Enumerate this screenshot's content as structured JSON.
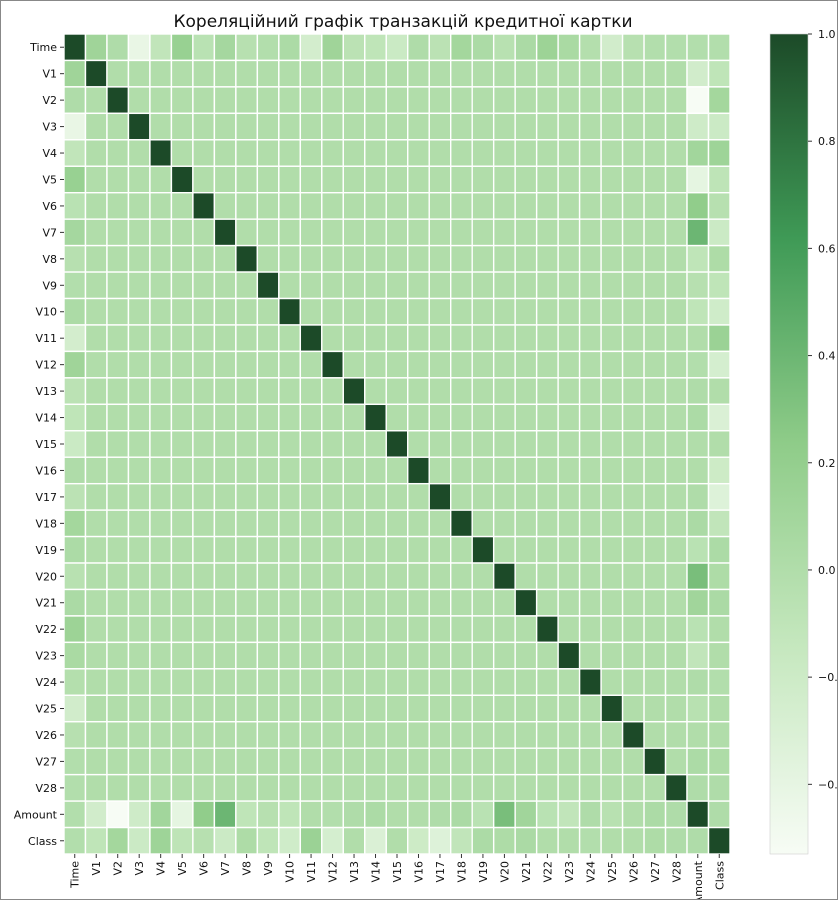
{
  "chart_data": {
    "type": "heatmap",
    "title": "Кореляційний графік транзакцій кредитної картки",
    "labels": [
      "Time",
      "V1",
      "V2",
      "V3",
      "V4",
      "V5",
      "V6",
      "V7",
      "V8",
      "V9",
      "V10",
      "V11",
      "V12",
      "V13",
      "V14",
      "V15",
      "V16",
      "V17",
      "V18",
      "V19",
      "V20",
      "V21",
      "V22",
      "V23",
      "V24",
      "V25",
      "V26",
      "V27",
      "V28",
      "Amount",
      "Class"
    ],
    "matrix": [
      [
        1.0,
        0.12,
        0.01,
        -0.42,
        -0.11,
        0.17,
        -0.06,
        0.08,
        -0.04,
        -0.01,
        0.03,
        -0.25,
        0.12,
        -0.07,
        -0.1,
        -0.18,
        0.01,
        -0.07,
        0.09,
        0.03,
        -0.05,
        0.04,
        0.14,
        0.05,
        -0.02,
        -0.23,
        -0.04,
        -0.01,
        -0.01,
        -0.01,
        -0.01
      ],
      [
        0.12,
        1.0,
        0,
        0,
        0,
        0,
        0,
        0,
        0,
        0,
        0,
        0,
        0,
        0,
        0,
        0,
        0,
        0,
        0,
        0,
        0,
        0,
        0,
        0,
        0,
        0,
        0,
        0,
        0,
        -0.23,
        -0.1
      ],
      [
        0.01,
        0,
        1.0,
        0,
        0,
        0,
        0,
        0,
        0,
        0,
        0,
        0,
        0,
        0,
        0,
        0,
        0,
        0,
        0,
        0,
        0,
        0,
        0,
        0,
        0,
        0,
        0,
        0,
        0,
        -0.53,
        0.09
      ],
      [
        -0.42,
        0,
        0,
        1.0,
        0,
        0,
        0,
        0,
        0,
        0,
        0,
        0,
        0,
        0,
        0,
        0,
        0,
        0,
        0,
        0,
        0,
        0,
        0,
        0,
        0,
        0,
        0,
        0,
        0,
        -0.21,
        -0.19
      ],
      [
        -0.11,
        0,
        0,
        0,
        1.0,
        0,
        0,
        0,
        0,
        0,
        0,
        0,
        0,
        0,
        0,
        0,
        0,
        0,
        0,
        0,
        0,
        0,
        0,
        0,
        0,
        0,
        0,
        0,
        0,
        0.1,
        0.13
      ],
      [
        0.17,
        0,
        0,
        0,
        0,
        1.0,
        0,
        0,
        0,
        0,
        0,
        0,
        0,
        0,
        0,
        0,
        0,
        0,
        0,
        0,
        0,
        0,
        0,
        0,
        0,
        0,
        0,
        0,
        0,
        -0.39,
        -0.09
      ],
      [
        -0.06,
        0,
        0,
        0,
        0,
        0,
        1.0,
        0,
        0,
        0,
        0,
        0,
        0,
        0,
        0,
        0,
        0,
        0,
        0,
        0,
        0,
        0,
        0,
        0,
        0,
        0,
        0,
        0,
        0,
        0.22,
        -0.04
      ],
      [
        0.08,
        0,
        0,
        0,
        0,
        0,
        0,
        1.0,
        0,
        0,
        0,
        0,
        0,
        0,
        0,
        0,
        0,
        0,
        0,
        0,
        0,
        0,
        0,
        0,
        0,
        0,
        0,
        0,
        0,
        0.4,
        -0.19
      ],
      [
        -0.04,
        0,
        0,
        0,
        0,
        0,
        0,
        0,
        1.0,
        0,
        0,
        0,
        0,
        0,
        0,
        0,
        0,
        0,
        0,
        0,
        0,
        0,
        0,
        0,
        0,
        0,
        0,
        0,
        0,
        -0.1,
        0.02
      ],
      [
        -0.01,
        0,
        0,
        0,
        0,
        0,
        0,
        0,
        0,
        1.0,
        0,
        0,
        0,
        0,
        0,
        0,
        0,
        0,
        0,
        0,
        0,
        0,
        0,
        0,
        0,
        0,
        0,
        0,
        0,
        -0.04,
        -0.1
      ],
      [
        0.03,
        0,
        0,
        0,
        0,
        0,
        0,
        0,
        0,
        0,
        1.0,
        0,
        0,
        0,
        0,
        0,
        0,
        0,
        0,
        0,
        0,
        0,
        0,
        0,
        0,
        0,
        0,
        0,
        0,
        -0.1,
        -0.22
      ],
      [
        -0.25,
        0,
        0,
        0,
        0,
        0,
        0,
        0,
        0,
        0,
        0,
        1.0,
        0,
        0,
        0,
        0,
        0,
        0,
        0,
        0,
        0,
        0,
        0,
        0,
        0,
        0,
        0,
        0,
        0,
        0.0,
        0.15
      ],
      [
        0.12,
        0,
        0,
        0,
        0,
        0,
        0,
        0,
        0,
        0,
        0,
        0,
        1.0,
        0,
        0,
        0,
        0,
        0,
        0,
        0,
        0,
        0,
        0,
        0,
        0,
        0,
        0,
        0,
        0,
        -0.01,
        -0.26
      ],
      [
        -0.07,
        0,
        0,
        0,
        0,
        0,
        0,
        0,
        0,
        0,
        0,
        0,
        0,
        1.0,
        0,
        0,
        0,
        0,
        0,
        0,
        0,
        0,
        0,
        0,
        0,
        0,
        0,
        0,
        0,
        0.01,
        0.0
      ],
      [
        -0.1,
        0,
        0,
        0,
        0,
        0,
        0,
        0,
        0,
        0,
        0,
        0,
        0,
        0,
        1.0,
        0,
        0,
        0,
        0,
        0,
        0,
        0,
        0,
        0,
        0,
        0,
        0,
        0,
        0,
        0.03,
        -0.3
      ],
      [
        -0.18,
        0,
        0,
        0,
        0,
        0,
        0,
        0,
        0,
        0,
        0,
        0,
        0,
        0,
        0,
        1.0,
        0,
        0,
        0,
        0,
        0,
        0,
        0,
        0,
        0,
        0,
        0,
        0,
        0,
        0.0,
        0.0
      ],
      [
        0.01,
        0,
        0,
        0,
        0,
        0,
        0,
        0,
        0,
        0,
        0,
        0,
        0,
        0,
        0,
        0,
        1.0,
        0,
        0,
        0,
        0,
        0,
        0,
        0,
        0,
        0,
        0,
        0,
        0,
        0.0,
        -0.2
      ],
      [
        -0.07,
        0,
        0,
        0,
        0,
        0,
        0,
        0,
        0,
        0,
        0,
        0,
        0,
        0,
        0,
        0,
        0,
        1.0,
        0,
        0,
        0,
        0,
        0,
        0,
        0,
        0,
        0,
        0,
        0,
        0.01,
        -0.33
      ],
      [
        0.09,
        0,
        0,
        0,
        0,
        0,
        0,
        0,
        0,
        0,
        0,
        0,
        0,
        0,
        0,
        0,
        0,
        0,
        1.0,
        0,
        0,
        0,
        0,
        0,
        0,
        0,
        0,
        0,
        0,
        0.04,
        -0.11
      ],
      [
        0.03,
        0,
        0,
        0,
        0,
        0,
        0,
        0,
        0,
        0,
        0,
        0,
        0,
        0,
        0,
        0,
        0,
        0,
        0,
        1.0,
        0,
        0,
        0,
        0,
        0,
        0,
        0,
        0,
        0,
        -0.06,
        0.03
      ],
      [
        -0.05,
        0,
        0,
        0,
        0,
        0,
        0,
        0,
        0,
        0,
        0,
        0,
        0,
        0,
        0,
        0,
        0,
        0,
        0,
        0,
        1.0,
        0,
        0,
        0,
        0,
        0,
        0,
        0,
        0,
        0.34,
        0.02
      ],
      [
        0.04,
        0,
        0,
        0,
        0,
        0,
        0,
        0,
        0,
        0,
        0,
        0,
        0,
        0,
        0,
        0,
        0,
        0,
        0,
        0,
        0,
        1.0,
        0,
        0,
        0,
        0,
        0,
        0,
        0,
        0.11,
        0.04
      ],
      [
        0.14,
        0,
        0,
        0,
        0,
        0,
        0,
        0,
        0,
        0,
        0,
        0,
        0,
        0,
        0,
        0,
        0,
        0,
        0,
        0,
        0,
        0,
        1.0,
        0,
        0,
        0,
        0,
        0,
        0,
        -0.06,
        0.0
      ],
      [
        0.05,
        0,
        0,
        0,
        0,
        0,
        0,
        0,
        0,
        0,
        0,
        0,
        0,
        0,
        0,
        0,
        0,
        0,
        0,
        0,
        0,
        0,
        0,
        1.0,
        0,
        0,
        0,
        0,
        0,
        -0.11,
        0.0
      ],
      [
        -0.02,
        0,
        0,
        0,
        0,
        0,
        0,
        0,
        0,
        0,
        0,
        0,
        0,
        0,
        0,
        0,
        0,
        0,
        0,
        0,
        0,
        0,
        0,
        0,
        1.0,
        0,
        0,
        0,
        0,
        0.01,
        -0.01
      ],
      [
        -0.23,
        0,
        0,
        0,
        0,
        0,
        0,
        0,
        0,
        0,
        0,
        0,
        0,
        0,
        0,
        0,
        0,
        0,
        0,
        0,
        0,
        0,
        0,
        0,
        0,
        1.0,
        0,
        0,
        0,
        -0.05,
        0.0
      ],
      [
        -0.04,
        0,
        0,
        0,
        0,
        0,
        0,
        0,
        0,
        0,
        0,
        0,
        0,
        0,
        0,
        0,
        0,
        0,
        0,
        0,
        0,
        0,
        0,
        0,
        0,
        0,
        1.0,
        0,
        0,
        -0.0,
        0.0
      ],
      [
        -0.01,
        0,
        0,
        0,
        0,
        0,
        0,
        0,
        0,
        0,
        0,
        0,
        0,
        0,
        0,
        0,
        0,
        0,
        0,
        0,
        0,
        0,
        0,
        0,
        0,
        0,
        0,
        1.0,
        0,
        0.03,
        0.02
      ],
      [
        -0.01,
        0,
        0,
        0,
        0,
        0,
        0,
        0,
        0,
        0,
        0,
        0,
        0,
        0,
        0,
        0,
        0,
        0,
        0,
        0,
        0,
        0,
        0,
        0,
        0,
        0,
        0,
        0,
        1.0,
        0.01,
        0.01
      ],
      [
        -0.01,
        -0.23,
        -0.53,
        -0.21,
        0.1,
        -0.39,
        0.22,
        0.4,
        -0.1,
        -0.04,
        -0.1,
        0.0,
        -0.01,
        0.01,
        0.03,
        0.0,
        0.0,
        0.01,
        0.04,
        -0.06,
        0.34,
        0.11,
        -0.06,
        -0.11,
        0.01,
        -0.05,
        -0.0,
        0.03,
        0.01,
        1.0,
        0.01
      ],
      [
        -0.01,
        -0.1,
        0.09,
        -0.19,
        0.13,
        -0.09,
        -0.04,
        -0.19,
        0.02,
        -0.1,
        -0.22,
        0.15,
        -0.26,
        0.0,
        -0.3,
        0.0,
        -0.2,
        -0.33,
        -0.11,
        0.03,
        0.02,
        0.04,
        0.0,
        0.0,
        -0.01,
        0.0,
        0.0,
        0.02,
        0.01,
        0.01,
        1.0
      ]
    ],
    "colorscale": {
      "name": "Greens",
      "colors": [
        "#f7fcf5",
        "#c6e8bf",
        "#8fcc89",
        "#3f9a56",
        "#1c4a28"
      ],
      "vmin": -0.53,
      "vmax": 1.0,
      "ticks": [
        1.0,
        0.8,
        0.6,
        0.4,
        0.2,
        0.0,
        -0.2,
        -0.4
      ],
      "tick_labels": [
        "1.0",
        "0.8",
        "0.6",
        "0.4",
        "0.2",
        "0.0",
        "−0.",
        "−0."
      ]
    }
  }
}
